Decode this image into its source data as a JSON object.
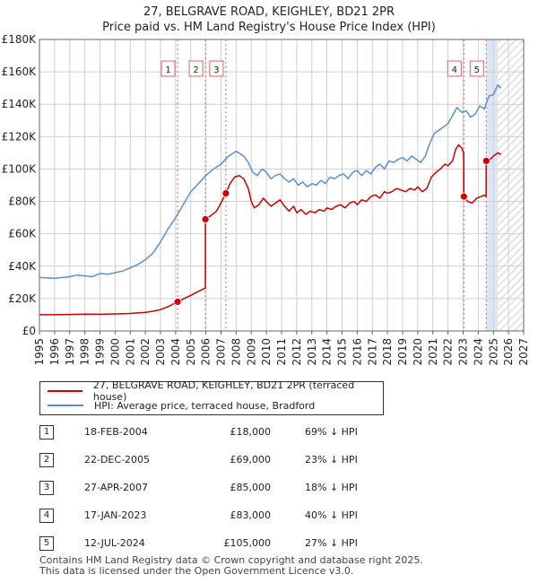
{
  "title": {
    "line1": "27, BELGRAVE ROAD, KEIGHLEY, BD21 2PR",
    "line2": "Price paid vs. HM Land Registry's House Price Index (HPI)"
  },
  "colors": {
    "property": "#cc0000",
    "hpi": "#5b8fcf",
    "shade": "#dde6f5",
    "grid": "#cfcfcf",
    "vline": "#e06060"
  },
  "chart_data": {
    "type": "line",
    "title": "Price paid vs. HM Land Registry's House Price Index (HPI)",
    "xlim": [
      1995,
      2027
    ],
    "ylim": [
      0,
      180000
    ],
    "x_ticks": [
      "1995",
      "1996",
      "1997",
      "1998",
      "1999",
      "2000",
      "2001",
      "2002",
      "2003",
      "2004",
      "2005",
      "2006",
      "2007",
      "2008",
      "2009",
      "2010",
      "2011",
      "2012",
      "2013",
      "2014",
      "2015",
      "2016",
      "2017",
      "2018",
      "2019",
      "2020",
      "2021",
      "2022",
      "2023",
      "2024",
      "2025",
      "2026",
      "2027"
    ],
    "y_ticks": [
      {
        "value": 0,
        "label": "£0"
      },
      {
        "value": 20000,
        "label": "£20K"
      },
      {
        "value": 40000,
        "label": "£40K"
      },
      {
        "value": 60000,
        "label": "£60K"
      },
      {
        "value": 80000,
        "label": "£80K"
      },
      {
        "value": 100000,
        "label": "£100K"
      },
      {
        "value": 120000,
        "label": "£120K"
      },
      {
        "value": 140000,
        "label": "£140K"
      },
      {
        "value": 160000,
        "label": "£160K"
      },
      {
        "value": 180000,
        "label": "£180K"
      }
    ],
    "shaded_from": 2024.53,
    "hatched_from": 2025.3,
    "series": [
      {
        "name": "27, BELGRAVE ROAD, KEIGHLEY, BD21 2PR (terraced house)",
        "x": [
          1995.0,
          1996.0,
          1997.0,
          1998.0,
          1999.0,
          2000.0,
          2001.0,
          2002.0,
          2002.5,
          2003.0,
          2003.5,
          2004.13,
          2004.5,
          2005.0,
          2005.5,
          2005.96,
          2005.97,
          2006.3,
          2006.7,
          2007.0,
          2007.32,
          2007.6,
          2007.9,
          2008.2,
          2008.5,
          2008.8,
          2009.0,
          2009.2,
          2009.5,
          2009.8,
          2010.0,
          2010.3,
          2010.6,
          2010.9,
          2011.2,
          2011.5,
          2011.8,
          2012.0,
          2012.3,
          2012.6,
          2012.9,
          2013.2,
          2013.5,
          2013.8,
          2014.0,
          2014.3,
          2014.6,
          2014.9,
          2015.2,
          2015.5,
          2015.8,
          2016.0,
          2016.3,
          2016.6,
          2016.9,
          2017.2,
          2017.5,
          2017.8,
          2018.0,
          2018.3,
          2018.6,
          2018.9,
          2019.2,
          2019.5,
          2019.8,
          2020.0,
          2020.3,
          2020.6,
          2020.9,
          2021.2,
          2021.5,
          2021.8,
          2022.0,
          2022.3,
          2022.5,
          2022.7,
          2022.9,
          2023.04,
          2023.05,
          2023.3,
          2023.6,
          2023.9,
          2024.2,
          2024.4,
          2024.52,
          2024.53,
          2024.8,
          2025.0,
          2025.3,
          2025.5
        ],
        "values": [
          10000,
          10000,
          10200,
          10400,
          10300,
          10500,
          10800,
          11500,
          12200,
          13200,
          15000,
          18000,
          19800,
          22000,
          24500,
          26500,
          69000,
          71000,
          74000,
          79000,
          85000,
          91000,
          95000,
          96000,
          94000,
          88000,
          80000,
          76000,
          78000,
          82000,
          80000,
          77000,
          79000,
          81000,
          77000,
          74000,
          77000,
          73000,
          75000,
          72000,
          74000,
          73000,
          75000,
          74000,
          76000,
          75000,
          77000,
          78000,
          76000,
          79000,
          80000,
          78000,
          81000,
          80000,
          83000,
          84000,
          82000,
          86000,
          85000,
          86000,
          88000,
          87000,
          86000,
          88000,
          87000,
          89000,
          86000,
          88000,
          95000,
          98000,
          100000,
          103000,
          102000,
          105000,
          112000,
          115000,
          113000,
          110000,
          83000,
          80000,
          79000,
          82000,
          83000,
          84000,
          83000,
          105000,
          106000,
          108000,
          110000,
          109000
        ],
        "color": "#cc0000"
      },
      {
        "name": "HPI: Average price, terraced house, Bradford",
        "x": [
          1995.0,
          1996.0,
          1997.0,
          1997.5,
          1998.0,
          1998.5,
          1999.0,
          1999.5,
          2000.0,
          2000.5,
          2001.0,
          2001.5,
          2002.0,
          2002.5,
          2003.0,
          2003.5,
          2004.0,
          2004.5,
          2005.0,
          2005.5,
          2006.0,
          2006.5,
          2007.0,
          2007.5,
          2008.0,
          2008.5,
          2008.8,
          2009.1,
          2009.4,
          2009.7,
          2010.0,
          2010.3,
          2010.6,
          2010.9,
          2011.2,
          2011.5,
          2011.8,
          2012.1,
          2012.4,
          2012.7,
          2013.0,
          2013.3,
          2013.6,
          2013.9,
          2014.2,
          2014.5,
          2014.8,
          2015.1,
          2015.4,
          2015.7,
          2016.0,
          2016.3,
          2016.6,
          2016.9,
          2017.2,
          2017.5,
          2017.8,
          2018.1,
          2018.4,
          2018.7,
          2019.0,
          2019.3,
          2019.6,
          2019.9,
          2020.2,
          2020.5,
          2020.8,
          2021.1,
          2021.4,
          2021.7,
          2022.0,
          2022.3,
          2022.6,
          2022.9,
          2023.2,
          2023.5,
          2023.8,
          2024.1,
          2024.4,
          2024.7,
          2025.0,
          2025.3,
          2025.5
        ],
        "values": [
          33000,
          32500,
          33500,
          34500,
          34000,
          33500,
          35500,
          35000,
          36000,
          37000,
          39000,
          41000,
          44000,
          48000,
          55000,
          63000,
          70000,
          78000,
          86000,
          91000,
          96000,
          100000,
          103000,
          108000,
          111000,
          108000,
          104000,
          98000,
          96000,
          100000,
          98000,
          94000,
          96000,
          97000,
          94000,
          92000,
          94000,
          90000,
          92000,
          89000,
          91000,
          90000,
          93000,
          91000,
          95000,
          94000,
          96000,
          97000,
          94000,
          98000,
          99000,
          96000,
          99000,
          97000,
          101000,
          103000,
          100000,
          105000,
          104000,
          106000,
          107000,
          105000,
          108000,
          106000,
          104000,
          108000,
          116000,
          122000,
          124000,
          126000,
          128000,
          133000,
          138000,
          135000,
          136000,
          132000,
          134000,
          139000,
          137000,
          145000,
          146000,
          152000,
          150000
        ],
        "color": "#5b8fcf"
      }
    ],
    "markers": [
      {
        "label": "1",
        "x": 2004.13,
        "value": 18000
      },
      {
        "label": "2",
        "x": 2005.97,
        "value": 69000
      },
      {
        "label": "3",
        "x": 2007.32,
        "value": 85000
      },
      {
        "label": "4",
        "x": 2023.05,
        "value": 83000
      },
      {
        "label": "5",
        "x": 2024.53,
        "value": 105000
      }
    ]
  },
  "legend": {
    "property": "27, BELGRAVE ROAD, KEIGHLEY, BD21 2PR (terraced house)",
    "hpi": "HPI: Average price, terraced house, Bradford"
  },
  "transactions": [
    {
      "num": "1",
      "date": "18-FEB-2004",
      "price": "£18,000",
      "hpi": "69% ↓ HPI"
    },
    {
      "num": "2",
      "date": "22-DEC-2005",
      "price": "£69,000",
      "hpi": "23% ↓ HPI"
    },
    {
      "num": "3",
      "date": "27-APR-2007",
      "price": "£85,000",
      "hpi": "18% ↓ HPI"
    },
    {
      "num": "4",
      "date": "17-JAN-2023",
      "price": "£83,000",
      "hpi": "40% ↓ HPI"
    },
    {
      "num": "5",
      "date": "12-JUL-2024",
      "price": "£105,000",
      "hpi": "27% ↓ HPI"
    }
  ],
  "footer": {
    "line1": "Contains HM Land Registry data © Crown copyright and database right 2025.",
    "line2": "This data is licensed under the Open Government Licence v3.0."
  }
}
